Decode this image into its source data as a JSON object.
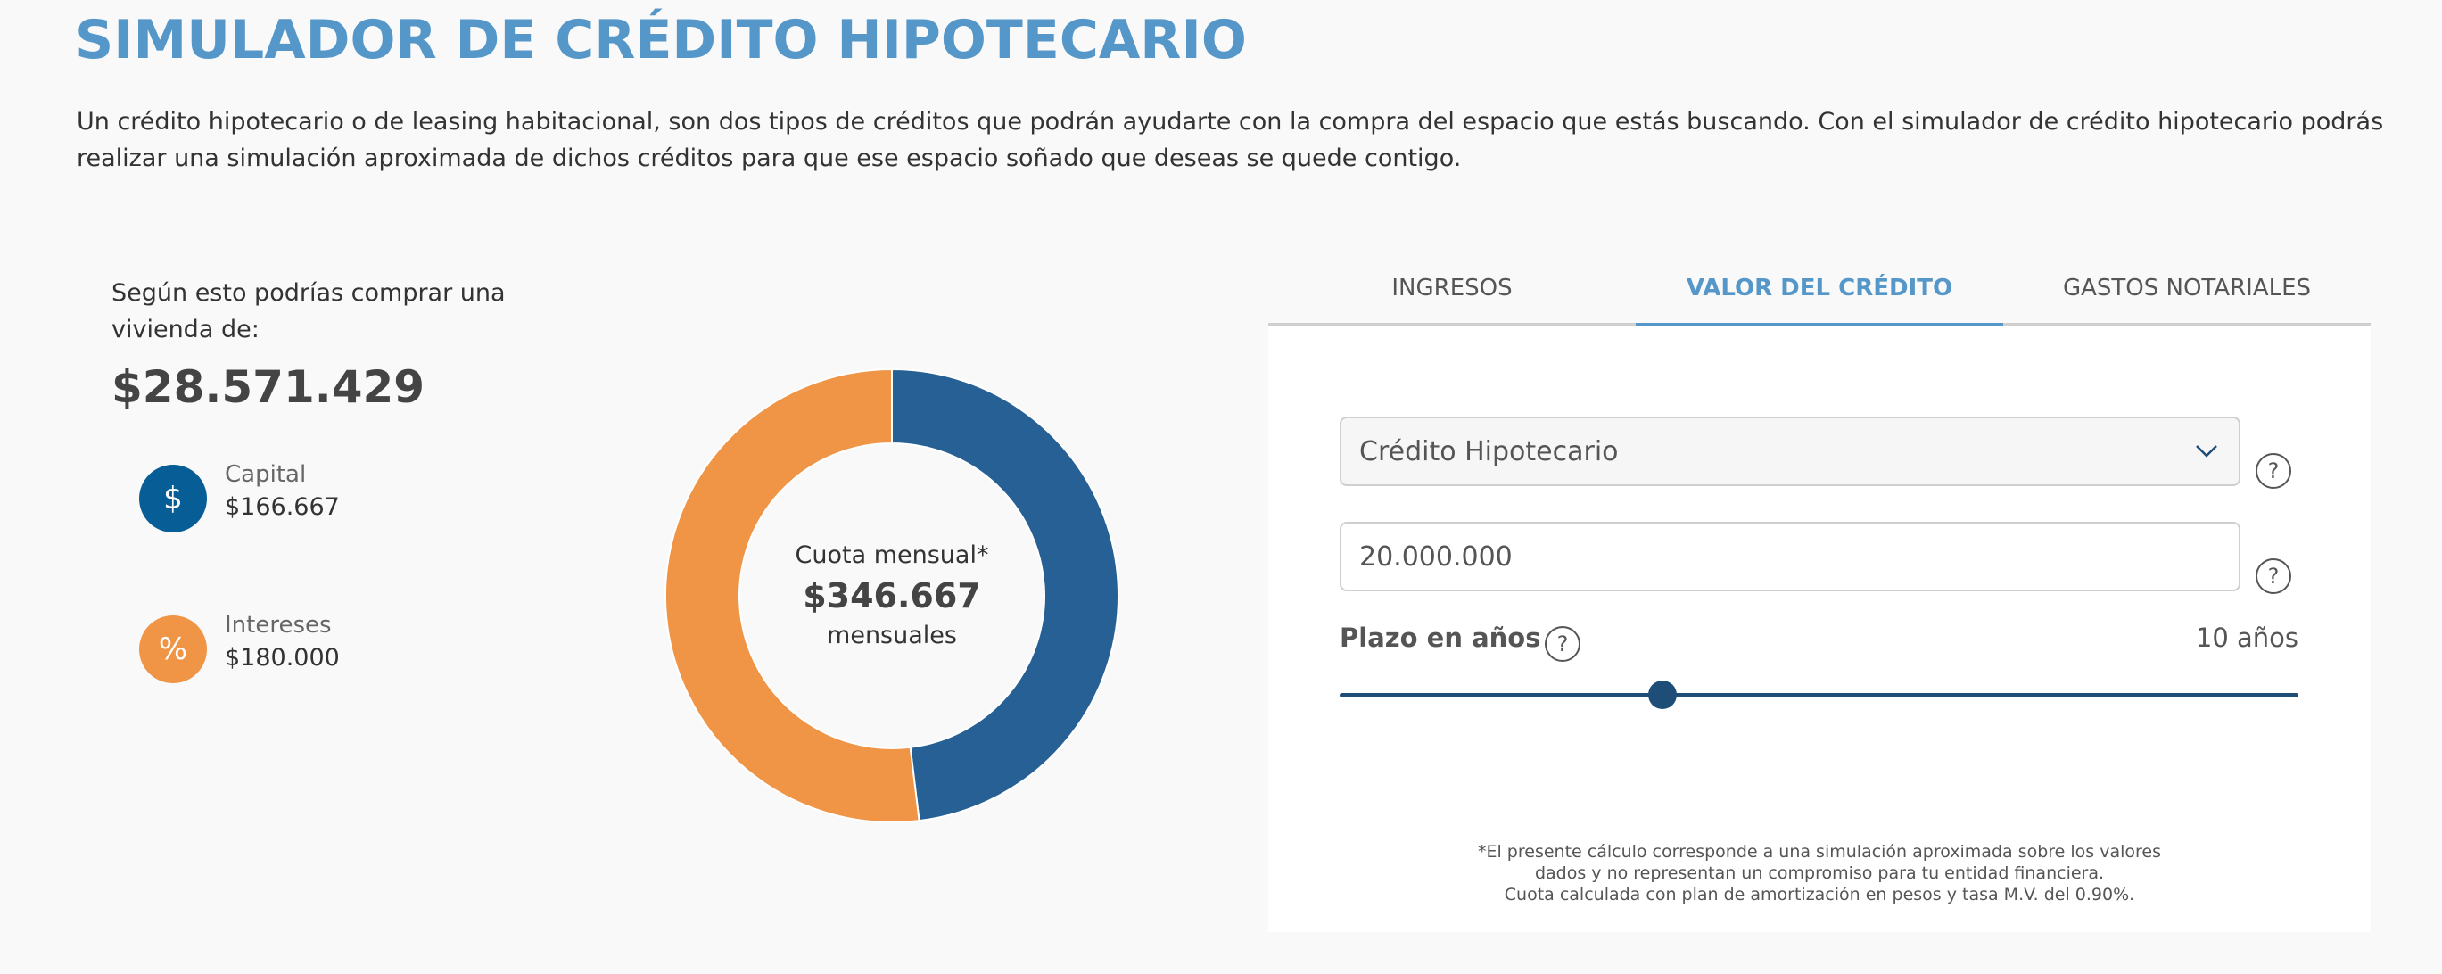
{
  "header": {
    "title": "SIMULADOR DE CRÉDITO HIPOTECARIO",
    "intro": "Un crédito hipotecario o de leasing habitacional, son dos tipos de créditos que podrán ayudarte con la compra del espacio que estás buscando. Con el simulador de crédito hipotecario podrás realizar una simulación aproximada de dichos créditos para que ese espacio soñado que deseas se quede contigo."
  },
  "summary": {
    "heading": "Según esto podrías comprar una vivienda de:",
    "total": "$28.571.429",
    "legend": [
      {
        "label": "Capital",
        "value": "$166.667",
        "icon": "dollar-icon",
        "glyph": "$",
        "color": "#075d96"
      },
      {
        "label": "Intereses",
        "value": "$180.000",
        "icon": "percent-icon",
        "glyph": "%",
        "color": "#f09446"
      }
    ]
  },
  "donut": {
    "center_label": "Cuota mensual*",
    "center_value": "$346.667",
    "center_suffix": "mensuales"
  },
  "chart_data": {
    "type": "pie",
    "title": "Cuota mensual*",
    "categories": [
      "Capital",
      "Intereses"
    ],
    "values": [
      166667,
      180000
    ],
    "colors": [
      "#266094",
      "#f09446"
    ],
    "total": 346667,
    "donut": true,
    "start_angle_deg": 0,
    "direction": "clockwise"
  },
  "tabs": [
    {
      "label": "INGRESOS",
      "active": false
    },
    {
      "label": "VALOR DEL CRÉDITO",
      "active": true
    },
    {
      "label": "GASTOS NOTARIALES",
      "active": false
    }
  ],
  "form": {
    "credit_type": {
      "value": "Crédito Hipotecario"
    },
    "credit_amount": {
      "value": "20.000.000"
    },
    "term": {
      "label": "Plazo en años",
      "value_text": "10 años",
      "value": 10
    },
    "help_glyph": "?"
  },
  "disclaimer": {
    "line1": "*El presente cálculo corresponde a una simulación aproximada sobre los valores",
    "line2": "dados y no representan un compromiso para tu entidad financiera.",
    "line3": "Cuota calculada con plan de amortización en pesos y tasa M.V. del 0.90%."
  },
  "colors": {
    "accent": "#5597c8",
    "capital": "#266094",
    "intereses": "#f09446",
    "slider": "#1e4d78"
  }
}
